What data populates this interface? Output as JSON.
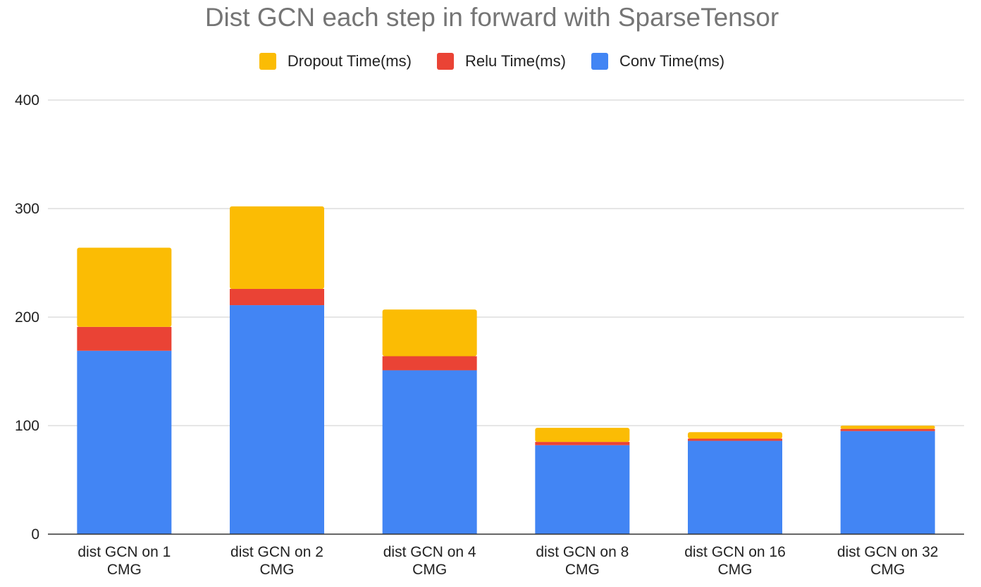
{
  "chart_data": {
    "type": "bar",
    "stacked": true,
    "title": "Dist GCN each step in forward with SparseTensor",
    "xlabel": "",
    "ylabel": "",
    "ylim": [
      0,
      400
    ],
    "yticks": [
      0,
      100,
      200,
      300,
      400
    ],
    "grid": true,
    "legend_position": "top",
    "categories": [
      [
        "dist GCN on 1",
        "CMG"
      ],
      [
        "dist GCN on 2",
        "CMG"
      ],
      [
        "dist GCN on 4",
        "CMG"
      ],
      [
        "dist GCN on 8",
        "CMG"
      ],
      [
        "dist GCN on 16",
        "CMG"
      ],
      [
        "dist GCN on 32",
        "CMG"
      ]
    ],
    "series": [
      {
        "name": "Conv Time(ms)",
        "color": "#4285F4",
        "values": [
          169,
          211,
          151,
          82,
          86,
          95
        ]
      },
      {
        "name": "Relu Time(ms)",
        "color": "#EA4335",
        "values": [
          22,
          15,
          13,
          3,
          2,
          2
        ]
      },
      {
        "name": "Dropout Time(ms)",
        "color": "#FBBC04",
        "values": [
          73,
          76,
          43,
          13,
          6,
          3
        ]
      }
    ],
    "legend_order": [
      "Dropout Time(ms)",
      "Relu Time(ms)",
      "Conv Time(ms)"
    ]
  }
}
